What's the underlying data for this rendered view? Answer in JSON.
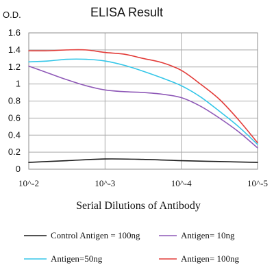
{
  "chart_data": {
    "type": "line",
    "title": "ELISA Result",
    "ylabel": "O.D.",
    "xlabel": "Serial Dilutions of Antibody",
    "categories": [
      "10^-2",
      "10^-3",
      "10^-4",
      "10^-5"
    ],
    "ylim": [
      0,
      1.6
    ],
    "yticks": [
      "0",
      "0.2",
      "0.4",
      "0.6",
      "0.8",
      "1",
      "1.2",
      "1.4",
      "1.6"
    ],
    "grid": true,
    "legend": "bottom",
    "series": [
      {
        "name": "Control Antigen = 100ng",
        "color": "#1a1a1a",
        "points": [
          [
            0,
            0.08
          ],
          [
            0.5,
            0.1
          ],
          [
            1,
            0.12
          ],
          [
            1.5,
            0.115
          ],
          [
            2,
            0.1
          ],
          [
            2.5,
            0.09
          ],
          [
            3,
            0.08
          ]
        ]
      },
      {
        "name": "Antigen= 10ng",
        "color": "#8e58b7",
        "points": [
          [
            0,
            1.21
          ],
          [
            0.25,
            1.13
          ],
          [
            0.5,
            1.05
          ],
          [
            0.75,
            0.98
          ],
          [
            1,
            0.93
          ],
          [
            1.25,
            0.91
          ],
          [
            1.5,
            0.9
          ],
          [
            1.75,
            0.88
          ],
          [
            2,
            0.84
          ],
          [
            2.25,
            0.74
          ],
          [
            2.5,
            0.6
          ],
          [
            2.75,
            0.44
          ],
          [
            3,
            0.25
          ]
        ]
      },
      {
        "name": "Antigen=50ng",
        "color": "#33c6e8",
        "points": [
          [
            0,
            1.26
          ],
          [
            0.25,
            1.27
          ],
          [
            0.5,
            1.29
          ],
          [
            0.75,
            1.29
          ],
          [
            1,
            1.27
          ],
          [
            1.25,
            1.22
          ],
          [
            1.5,
            1.15
          ],
          [
            1.75,
            1.07
          ],
          [
            2,
            0.98
          ],
          [
            2.25,
            0.85
          ],
          [
            2.5,
            0.68
          ],
          [
            2.75,
            0.5
          ],
          [
            3,
            0.29
          ]
        ]
      },
      {
        "name": "Antigen= 100ng",
        "color": "#e23b38",
        "points": [
          [
            0,
            1.39
          ],
          [
            0.25,
            1.39
          ],
          [
            0.5,
            1.4
          ],
          [
            0.75,
            1.4
          ],
          [
            1,
            1.37
          ],
          [
            1.25,
            1.35
          ],
          [
            1.5,
            1.3
          ],
          [
            1.75,
            1.25
          ],
          [
            2,
            1.16
          ],
          [
            2.25,
            1.0
          ],
          [
            2.5,
            0.82
          ],
          [
            2.75,
            0.58
          ],
          [
            3,
            0.31
          ]
        ]
      }
    ]
  }
}
